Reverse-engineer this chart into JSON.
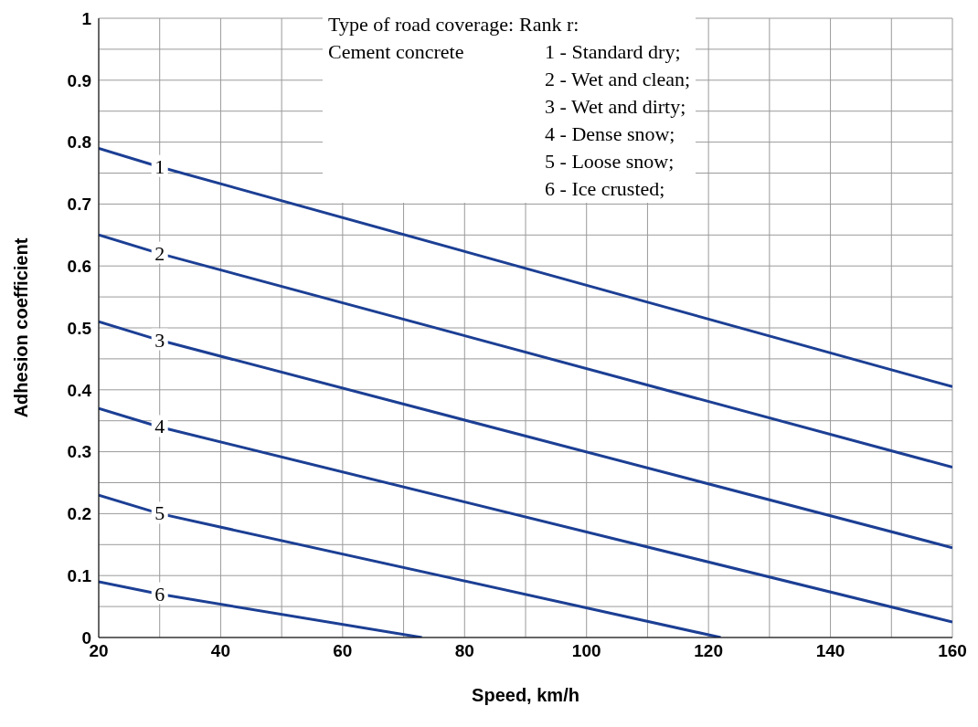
{
  "chart_data": {
    "type": "line",
    "xlabel": "Speed, km/h",
    "ylabel": "Adhesion coefficient",
    "xlim": [
      20,
      160
    ],
    "ylim": [
      0,
      1
    ],
    "xticks": [
      20,
      {
        "value": 30,
        "label": null
      },
      40,
      {
        "value": 50,
        "label": null
      },
      60,
      {
        "value": 70,
        "label": null
      },
      80,
      {
        "value": 90,
        "label": null
      },
      100,
      {
        "value": 110,
        "label": null
      },
      120,
      {
        "value": 130,
        "label": null
      },
      140,
      {
        "value": 150,
        "label": null
      },
      160
    ],
    "yticks": [
      0,
      {
        "value": 0.05,
        "label": null
      },
      0.1,
      {
        "value": 0.15,
        "label": null
      },
      0.2,
      {
        "value": 0.25,
        "label": null
      },
      0.3,
      {
        "value": 0.35,
        "label": null
      },
      0.4,
      {
        "value": 0.45,
        "label": null
      },
      0.5,
      {
        "value": 0.55,
        "label": null
      },
      0.6,
      {
        "value": 0.65,
        "label": null
      },
      0.7,
      {
        "value": 0.75,
        "label": null
      },
      0.8,
      {
        "value": 0.85,
        "label": null
      },
      0.9,
      {
        "value": 0.95,
        "label": null
      },
      1
    ],
    "grid": true,
    "marker": "none",
    "line_style": "solid",
    "series": [
      {
        "name": "1",
        "color": "#1c3f94",
        "x": [
          20,
          30,
          160
        ],
        "values": [
          0.79,
          0.76,
          0.405
        ]
      },
      {
        "name": "2",
        "color": "#1c3f94",
        "x": [
          20,
          30,
          160
        ],
        "values": [
          0.65,
          0.62,
          0.275
        ]
      },
      {
        "name": "3",
        "color": "#1c3f94",
        "x": [
          20,
          30,
          160
        ],
        "values": [
          0.51,
          0.48,
          0.145
        ]
      },
      {
        "name": "4",
        "color": "#1c3f94",
        "x": [
          20,
          30,
          160
        ],
        "values": [
          0.37,
          0.34,
          0.025
        ]
      },
      {
        "name": "5",
        "color": "#1c3f94",
        "x": [
          20,
          30,
          122
        ],
        "values": [
          0.23,
          0.2,
          0
        ]
      },
      {
        "name": "6",
        "color": "#1c3f94",
        "x": [
          20,
          30,
          73
        ],
        "values": [
          0.09,
          0.07,
          0
        ]
      }
    ],
    "annotations": [
      "Type of road coverage:",
      "Cement concrete",
      "Rank r:",
      "1 - Standard dry;",
      "2 - Wet and clean;",
      "3 - Wet and dirty;",
      "4 - Dense snow;",
      "5 - Loose snow;",
      "6 - Ice crusted;"
    ]
  }
}
